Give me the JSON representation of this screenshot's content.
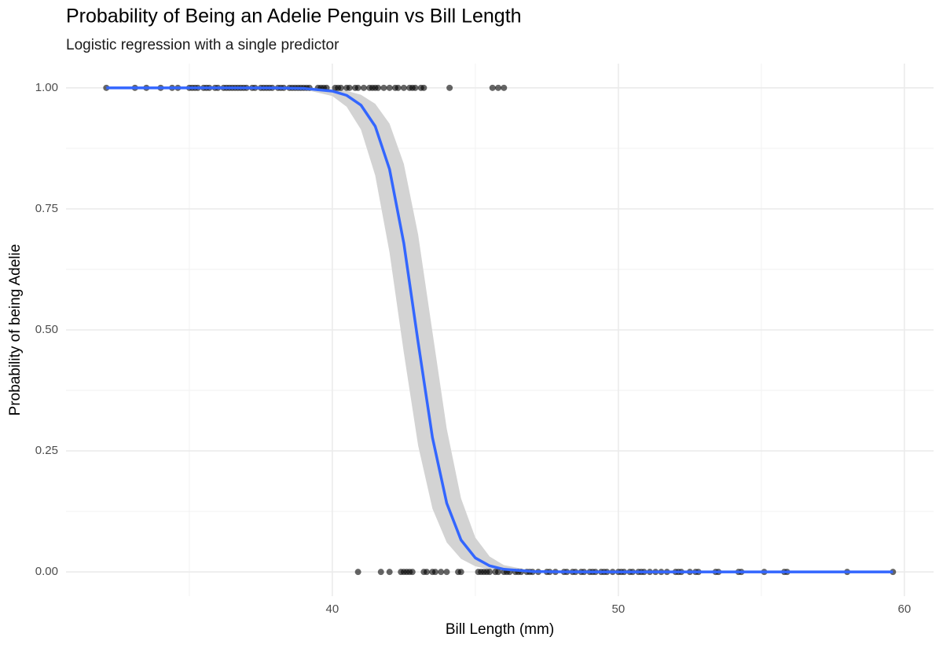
{
  "chart_data": {
    "type": "logistic",
    "title": "Probability of Being an Adelie Penguin vs Bill Length",
    "subtitle": "Logistic regression with a single predictor",
    "x_label": "Bill Length (mm)",
    "y_label": "Probability of being Adelie",
    "xlim": [
      30.69,
      61.02
    ],
    "ylim": [
      -0.05,
      1.05
    ],
    "xticks": [
      40,
      50,
      60
    ],
    "yticks": [
      {
        "value": 0,
        "label": "0.00"
      },
      {
        "value": 0.25,
        "label": "0.25"
      },
      {
        "value": 0.5,
        "label": "0.50"
      },
      {
        "value": 0.75,
        "label": "0.75"
      },
      {
        "value": 1,
        "label": "1.00"
      }
    ],
    "minor_xticks": [
      35,
      45,
      55
    ],
    "minor_yticks": [
      0.125,
      0.375,
      0.625,
      0.875
    ],
    "grid": true,
    "scatter": {
      "color": "#000000",
      "opacity": 0.6,
      "x": [
        32.1,
        33.1,
        33.5,
        34.0,
        34.4,
        34.6,
        35.0,
        35.1,
        35.2,
        35.3,
        35.5,
        35.6,
        35.7,
        35.9,
        36.0,
        36.2,
        36.3,
        36.4,
        36.5,
        36.6,
        36.7,
        36.8,
        36.9,
        37.0,
        37.2,
        37.3,
        37.5,
        37.6,
        37.7,
        37.8,
        37.9,
        38.1,
        38.2,
        38.3,
        38.5,
        38.6,
        38.7,
        38.8,
        38.9,
        39.0,
        39.1,
        39.2,
        39.5,
        39.6,
        39.7,
        39.8,
        40.1,
        40.2,
        40.3,
        40.5,
        40.6,
        40.8,
        40.9,
        41.1,
        41.3,
        41.4,
        41.5,
        41.6,
        41.8,
        42.0,
        42.2,
        42.3,
        42.5,
        42.7,
        42.8,
        42.9,
        43.1,
        43.2,
        44.1,
        45.6,
        45.8,
        46.0,
        40.9,
        41.7,
        42.0,
        42.4,
        42.5,
        42.6,
        42.7,
        42.8,
        43.2,
        43.3,
        43.5,
        43.6,
        43.8,
        44.0,
        44.4,
        44.5,
        45.1,
        45.2,
        45.3,
        45.4,
        45.5,
        45.7,
        45.8,
        46.0,
        46.1,
        46.2,
        46.4,
        46.5,
        46.6,
        46.8,
        46.9,
        47.0,
        47.2,
        47.5,
        47.6,
        47.8,
        48.1,
        48.2,
        48.4,
        48.5,
        48.7,
        48.8,
        49.0,
        49.1,
        49.2,
        49.4,
        49.5,
        49.6,
        49.8,
        50.0,
        50.1,
        50.2,
        50.4,
        50.5,
        50.7,
        50.8,
        50.9,
        51.1,
        51.3,
        51.5,
        51.7,
        52.0,
        52.1,
        52.2,
        52.5,
        52.7,
        52.8,
        53.4,
        53.5,
        54.2,
        54.3,
        55.1,
        55.8,
        55.9,
        58.0,
        59.6
      ],
      "values": [
        1,
        1,
        1,
        1,
        1,
        1,
        1,
        1,
        1,
        1,
        1,
        1,
        1,
        1,
        1,
        1,
        1,
        1,
        1,
        1,
        1,
        1,
        1,
        1,
        1,
        1,
        1,
        1,
        1,
        1,
        1,
        1,
        1,
        1,
        1,
        1,
        1,
        1,
        1,
        1,
        1,
        1,
        1,
        1,
        1,
        1,
        1,
        1,
        1,
        1,
        1,
        1,
        1,
        1,
        1,
        1,
        1,
        1,
        1,
        1,
        1,
        1,
        1,
        1,
        1,
        1,
        1,
        1,
        1,
        1,
        1,
        1,
        0,
        0,
        0,
        0,
        0,
        0,
        0,
        0,
        0,
        0,
        0,
        0,
        0,
        0,
        0,
        0,
        0,
        0,
        0,
        0,
        0,
        0,
        0,
        0,
        0,
        0,
        0,
        0,
        0,
        0,
        0,
        0,
        0,
        0,
        0,
        0,
        0,
        0,
        0,
        0,
        0,
        0,
        0,
        0,
        0,
        0,
        0,
        0,
        0,
        0,
        0,
        0,
        0,
        0,
        0,
        0,
        0,
        0,
        0,
        0,
        0,
        0,
        0,
        0,
        0,
        0,
        0,
        0,
        0,
        0,
        0,
        0,
        0,
        0,
        0,
        0
      ]
    },
    "fit": {
      "color": "#3366ff",
      "band_color": "#d3d3d3",
      "x": [
        32.1,
        34,
        36,
        38,
        39,
        40,
        40.5,
        41,
        41.5,
        42,
        42.5,
        43,
        43.5,
        44,
        44.5,
        45,
        45.5,
        46,
        47,
        48,
        50,
        55,
        59.6
      ],
      "values": [
        1,
        1,
        1,
        0.9998,
        0.9988,
        0.9933,
        0.9845,
        0.9644,
        0.9206,
        0.832,
        0.679,
        0.4745,
        0.278,
        0.142,
        0.066,
        0.029,
        0.0127,
        0.0055,
        0.001,
        0.0002,
        0,
        0,
        0
      ],
      "upper": [
        1,
        1,
        1,
        0.9999,
        0.9995,
        0.9973,
        0.9938,
        0.9857,
        0.967,
        0.926,
        0.843,
        0.697,
        0.496,
        0.296,
        0.152,
        0.071,
        0.032,
        0.014,
        0.0026,
        0.0005,
        0,
        0,
        0
      ],
      "lower": [
        1,
        1,
        1,
        0.9994,
        0.9969,
        0.983,
        0.961,
        0.914,
        0.819,
        0.66,
        0.453,
        0.261,
        0.131,
        0.061,
        0.027,
        0.0117,
        0.005,
        0.0022,
        0.0004,
        0.0001,
        0,
        0,
        0
      ]
    }
  }
}
